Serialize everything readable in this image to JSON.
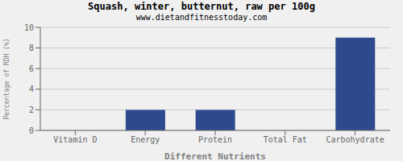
{
  "chart_data": {
    "type": "bar",
    "title": "Squash, winter, butternut, raw per 100g",
    "subtitle": "www.dietandfitnesstoday.com",
    "xlabel": "Different Nutrients",
    "ylabel": "Percentage of RDH (%)",
    "categories": [
      "Vitamin D",
      "Energy",
      "Protein",
      "Total Fat",
      "Carbohydrate"
    ],
    "values": [
      0,
      2,
      2,
      0,
      9
    ],
    "color": "#2e4a8e",
    "ylim": [
      0,
      10
    ],
    "yticks": [
      0,
      2,
      4,
      6,
      8,
      10
    ],
    "grid": true
  }
}
